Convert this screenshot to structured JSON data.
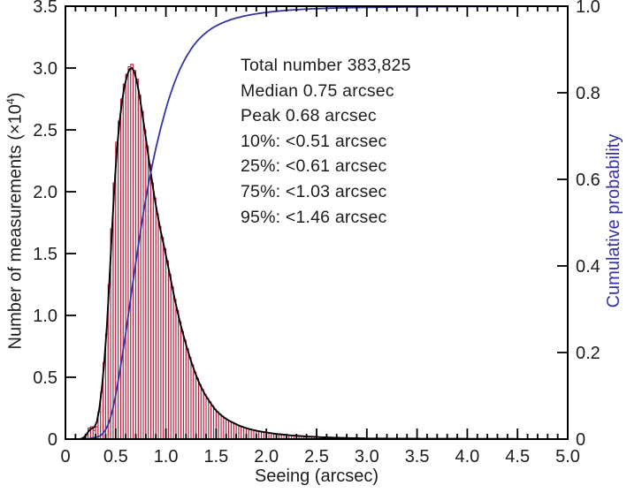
{
  "figure": {
    "background": "#ffffff"
  },
  "colors": {
    "histogram_outline": "#b01f40",
    "histogram_fill": "#ffffff",
    "fit_curve": "#000000",
    "cumulative_curve": "#3434a8",
    "axis": "#000000",
    "text": "#1c1c1c"
  },
  "labels": {
    "x": "Seeing (arcsec)",
    "y_left_pre": "Number of measurements (×10",
    "y_left_sup": "4",
    "y_left_post": ")",
    "y_right": "Cumulative probability"
  },
  "chart_data": {
    "type": "bar",
    "subtype": "histogram-with-fit-and-cumulative",
    "title": "",
    "xlabel": "Seeing (arcsec)",
    "ylabel": "Number of measurements (×10⁴)",
    "ylabel_right": "Cumulative probability",
    "xlim": [
      0,
      5
    ],
    "ylim": [
      0,
      3.5
    ],
    "ylim_right": [
      0,
      1
    ],
    "grid": false,
    "legend_position": "none",
    "x_major_ticks": [
      "0",
      "0.5",
      "1.0",
      "1.5",
      "2.0",
      "2.5",
      "3.0",
      "3.5",
      "4.0",
      "4.5",
      "5.0"
    ],
    "x_minor_step": 0.1,
    "y_left_ticks": [
      "0",
      "0.5",
      "1.0",
      "1.5",
      "2.0",
      "2.5",
      "3.0",
      "3.5"
    ],
    "y_right_ticks": [
      "0",
      "0.2",
      "0.4",
      "0.6",
      "0.8",
      "1.0"
    ],
    "bin_start": 0,
    "bin_width": 0.025,
    "bins_units": "10^4 measurements",
    "bins": [
      0,
      0,
      0,
      0,
      0,
      0,
      0,
      0.01,
      0.03,
      0.09,
      0.1,
      0.07,
      0.1,
      0.22,
      0.38,
      0.62,
      0.85,
      1.25,
      1.7,
      2.07,
      2.4,
      2.57,
      2.75,
      2.87,
      2.95,
      3.01,
      3.03,
      2.98,
      2.91,
      2.78,
      2.65,
      2.5,
      2.37,
      2.22,
      2.07,
      1.95,
      1.82,
      1.72,
      1.63,
      1.54,
      1.44,
      1.33,
      1.23,
      1.13,
      1.04,
      0.95,
      0.87,
      0.8,
      0.73,
      0.66,
      0.6,
      0.54,
      0.49,
      0.44,
      0.4,
      0.36,
      0.33,
      0.3,
      0.27,
      0.24,
      0.22,
      0.2,
      0.185,
      0.17,
      0.155,
      0.145,
      0.135,
      0.125,
      0.115,
      0.105,
      0.1,
      0.092,
      0.085,
      0.08,
      0.075,
      0.07,
      0.066,
      0.062,
      0.058,
      0.055,
      0.052,
      0.049,
      0.046,
      0.043,
      0.041,
      0.039,
      0.037,
      0.035,
      0.033,
      0.031,
      0.029,
      0.028,
      0.026,
      0.025,
      0.024,
      0.022,
      0.021,
      0.02,
      0.019,
      0.018,
      0.017,
      0.016,
      0.015,
      0.014,
      0.013,
      0.013,
      0.012,
      0.011,
      0.011,
      0.01,
      0.01,
      0.009,
      0.009,
      0.008,
      0.008,
      0.007,
      0.007,
      0.007,
      0.006,
      0.006,
      0.005,
      0.005,
      0.005,
      0.005,
      0.005,
      0.005,
      0.005,
      0.005,
      0.004,
      0.004,
      0.004,
      0.004,
      0.004,
      0.004,
      0.004,
      0.004,
      0.004,
      0.004,
      0.004,
      0.004,
      0.003,
      0.003,
      0.003,
      0.003,
      0.003,
      0.003,
      0.003,
      0.003,
      0.003,
      0.003,
      0.003,
      0.003,
      0.003,
      0.003,
      0.003,
      0.003,
      0.003,
      0.003,
      0.003,
      0.003,
      0.002,
      0.002,
      0.002,
      0.002,
      0.002,
      0.002,
      0.002,
      0.002,
      0.002,
      0.002,
      0.002,
      0.002,
      0.002,
      0.002,
      0.002,
      0.002,
      0.002,
      0.002,
      0.002,
      0.002,
      0.001,
      0.001,
      0.001,
      0.001,
      0.001,
      0.001,
      0.001,
      0.001,
      0.001,
      0.001,
      0.001,
      0.001,
      0.001,
      0.001,
      0.001,
      0.001,
      0.001,
      0.001,
      0.001,
      0.001
    ],
    "series": [
      {
        "name": "seeing histogram",
        "role": "bars",
        "color": "#b01f40"
      },
      {
        "name": "smooth fit",
        "role": "fit-line",
        "color": "#000000"
      },
      {
        "name": "cumulative probability",
        "role": "cumulative-line",
        "axis": "right",
        "color": "#3434a8"
      }
    ],
    "annotations": [
      "Total number 383,825",
      "Median 0.75 arcsec",
      "Peak 0.68 arcsec",
      "10%: <0.51 arcsec",
      "25%: <0.61 arcsec",
      "75%: <1.03 arcsec",
      "95%: <1.46 arcsec"
    ],
    "stats": {
      "total_number": 383825,
      "median_arcsec": 0.75,
      "peak_arcsec": 0.68,
      "p10_arcsec": 0.51,
      "p25_arcsec": 0.61,
      "p75_arcsec": 1.03,
      "p95_arcsec": 1.46
    }
  }
}
